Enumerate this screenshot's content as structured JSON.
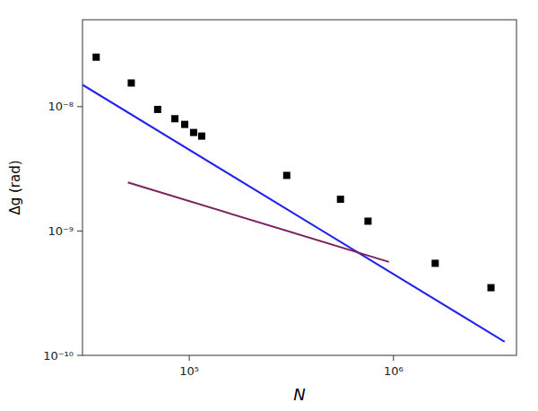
{
  "chart_data": {
    "type": "scatter",
    "title": "",
    "xlabel": "N",
    "ylabel": "Δg (rad)",
    "log": true,
    "grid": false,
    "xlim": [
      30000.0,
      4000000.0
    ],
    "ylim": [
      1e-10,
      5e-08
    ],
    "xticks": [
      {
        "value": 100000.0,
        "label": "10⁵"
      },
      {
        "value": 1000000.0,
        "label": "10⁶"
      }
    ],
    "yticks": [
      {
        "value": 1e-10,
        "label": "10⁻¹⁰"
      },
      {
        "value": 1e-09,
        "label": "10⁻⁹"
      },
      {
        "value": 1e-08,
        "label": "10⁻⁸"
      }
    ],
    "series": [
      {
        "type": "scatter",
        "color": "#000000",
        "marker": "square",
        "x": [
          35000.0,
          52000.0,
          70000.0,
          85000.0,
          95000.0,
          105000.0,
          115000.0,
          300000.0,
          550000.0,
          750000.0,
          1600000.0,
          3000000.0
        ],
        "values": [
          2.5e-08,
          1.55e-08,
          9.5e-09,
          8e-09,
          7.2e-09,
          6.2e-09,
          5.8e-09,
          2.8e-09,
          1.8e-09,
          1.2e-09,
          5.5e-10,
          3.5e-10
        ]
      },
      {
        "type": "line",
        "color": "#2222EE",
        "x": [
          30000.0,
          3500000.0
        ],
        "values": [
          1.5e-08,
          1.2857142857142857e-10
        ]
      },
      {
        "type": "line",
        "color": "#7B2060",
        "x": [
          50000.0,
          950000.0
        ],
        "values": [
          2.4596747752e-09,
          5.64288094e-10
        ]
      }
    ]
  }
}
